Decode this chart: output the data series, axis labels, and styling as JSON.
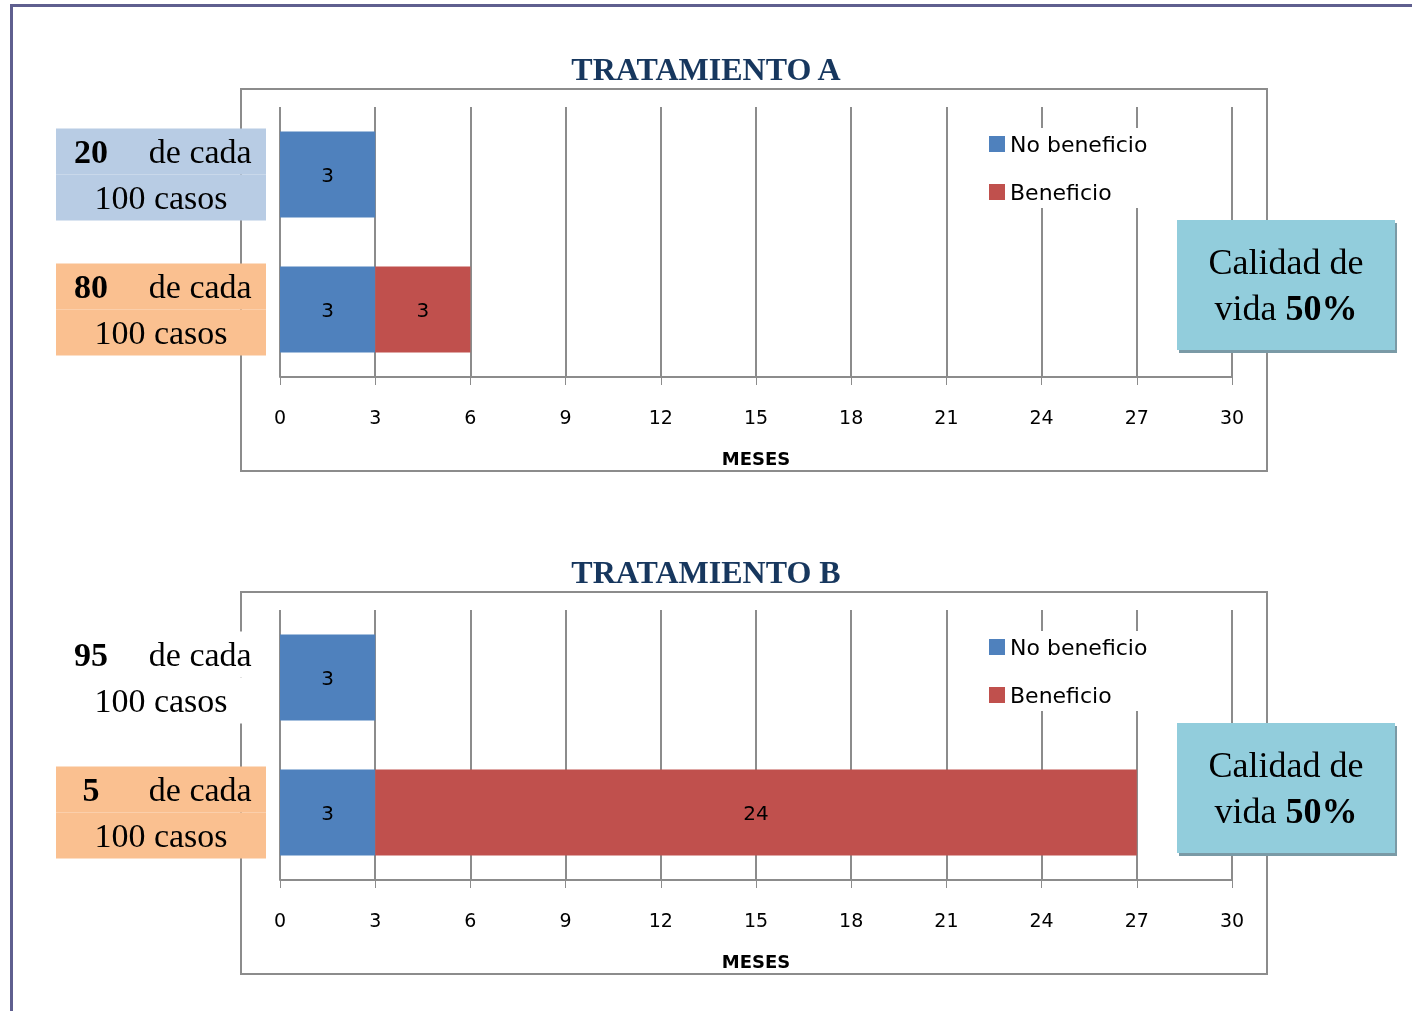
{
  "chart_data": [
    {
      "type": "bar",
      "title": "TRATAMIENTO A",
      "orientation": "horizontal",
      "stacked": true,
      "categories": [
        "20 de cada 100 casos",
        "80 de cada 100 casos"
      ],
      "series": [
        {
          "name": "No beneficio",
          "color": "#4f81bd",
          "values": [
            3,
            3
          ]
        },
        {
          "name": "Beneficio",
          "color": "#c0504d",
          "values": [
            null,
            3
          ]
        }
      ],
      "xlim": [
        0,
        30
      ],
      "xticks": [
        0,
        3,
        6,
        9,
        12,
        15,
        18,
        21,
        24,
        27,
        30
      ],
      "xlabel": "MESES",
      "grid": "x",
      "legend": "top right",
      "data_labels": true,
      "annotations": [
        "Calidad de vida 50%"
      ]
    },
    {
      "type": "bar",
      "title": "TRATAMIENTO B",
      "orientation": "horizontal",
      "stacked": true,
      "categories": [
        "95 de cada 100 casos",
        "5 de cada 100 casos"
      ],
      "series": [
        {
          "name": "No beneficio",
          "color": "#4f81bd",
          "values": [
            3,
            3
          ]
        },
        {
          "name": "Beneficio",
          "color": "#c0504d",
          "values": [
            null,
            24
          ]
        }
      ],
      "xlim": [
        0,
        30
      ],
      "xticks": [
        0,
        3,
        6,
        9,
        12,
        15,
        18,
        21,
        24,
        27,
        30
      ],
      "xlabel": "MESES",
      "grid": "x",
      "legend": "top right",
      "data_labels": true,
      "annotations": [
        "Calidad de vida 50%"
      ]
    }
  ]
}
